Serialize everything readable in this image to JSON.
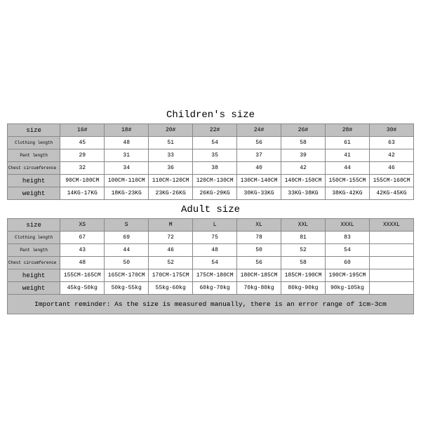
{
  "titles": {
    "children": "Children's size",
    "adult": "Adult size"
  },
  "row_labels": {
    "size": "size",
    "clothing_length": "Clothing length",
    "pant_length": "Pant length",
    "chest": "Chest circumference 1/2",
    "height": "height",
    "weight": "weight"
  },
  "children": {
    "headers": [
      "16#",
      "18#",
      "20#",
      "22#",
      "24#",
      "26#",
      "28#",
      "30#"
    ],
    "clothing_length": [
      "45",
      "48",
      "51",
      "54",
      "56",
      "58",
      "61",
      "63"
    ],
    "pant_length": [
      "29",
      "31",
      "33",
      "35",
      "37",
      "39",
      "41",
      "42"
    ],
    "chest": [
      "32",
      "34",
      "36",
      "38",
      "40",
      "42",
      "44",
      "46"
    ],
    "height": [
      "90CM-100CM",
      "100CM-110CM",
      "110CM-120CM",
      "120CM-130CM",
      "130CM-140CM",
      "140CM-150CM",
      "150CM-155CM",
      "155CM-160CM"
    ],
    "weight": [
      "14KG-17KG",
      "18KG-23KG",
      "23KG-26KG",
      "26KG-29KG",
      "30KG-33KG",
      "33KG-38KG",
      "38KG-42KG",
      "42KG-45KG"
    ]
  },
  "adult": {
    "headers": [
      "XS",
      "S",
      "M",
      "L",
      "XL",
      "XXL",
      "XXXL",
      "XXXXL"
    ],
    "clothing_length": [
      "67",
      "69",
      "72",
      "75",
      "78",
      "81",
      "83",
      ""
    ],
    "pant_length": [
      "43",
      "44",
      "46",
      "48",
      "50",
      "52",
      "54",
      ""
    ],
    "chest": [
      "48",
      "50",
      "52",
      "54",
      "56",
      "58",
      "60",
      ""
    ],
    "height": [
      "155CM-165CM",
      "165CM-170CM",
      "170CM-175CM",
      "175CM-180CM",
      "180CM-185CM",
      "185CM-190CM",
      "190CM-195CM",
      ""
    ],
    "weight": [
      "45kg-50kg",
      "50kg-55kg",
      "55kg-60kg",
      "60kg-70kg",
      "70kg-80kg",
      "80kg-90kg",
      "90kg-105kg",
      ""
    ]
  },
  "reminder": "Important reminder: As the size is measured manually, there is an error range of 1cm-3cm",
  "style": {
    "shade_color": "#c0c0c0",
    "border_color": "#888888",
    "font_family": "Courier New, monospace",
    "title_fontsize_pt": 14,
    "cell_fontsize_pt": 8,
    "tiny_fontsize_pt": 6,
    "small_fontsize_pt": 9,
    "reminder_fontsize_pt": 9.5,
    "first_col_width_pct": 13
  }
}
